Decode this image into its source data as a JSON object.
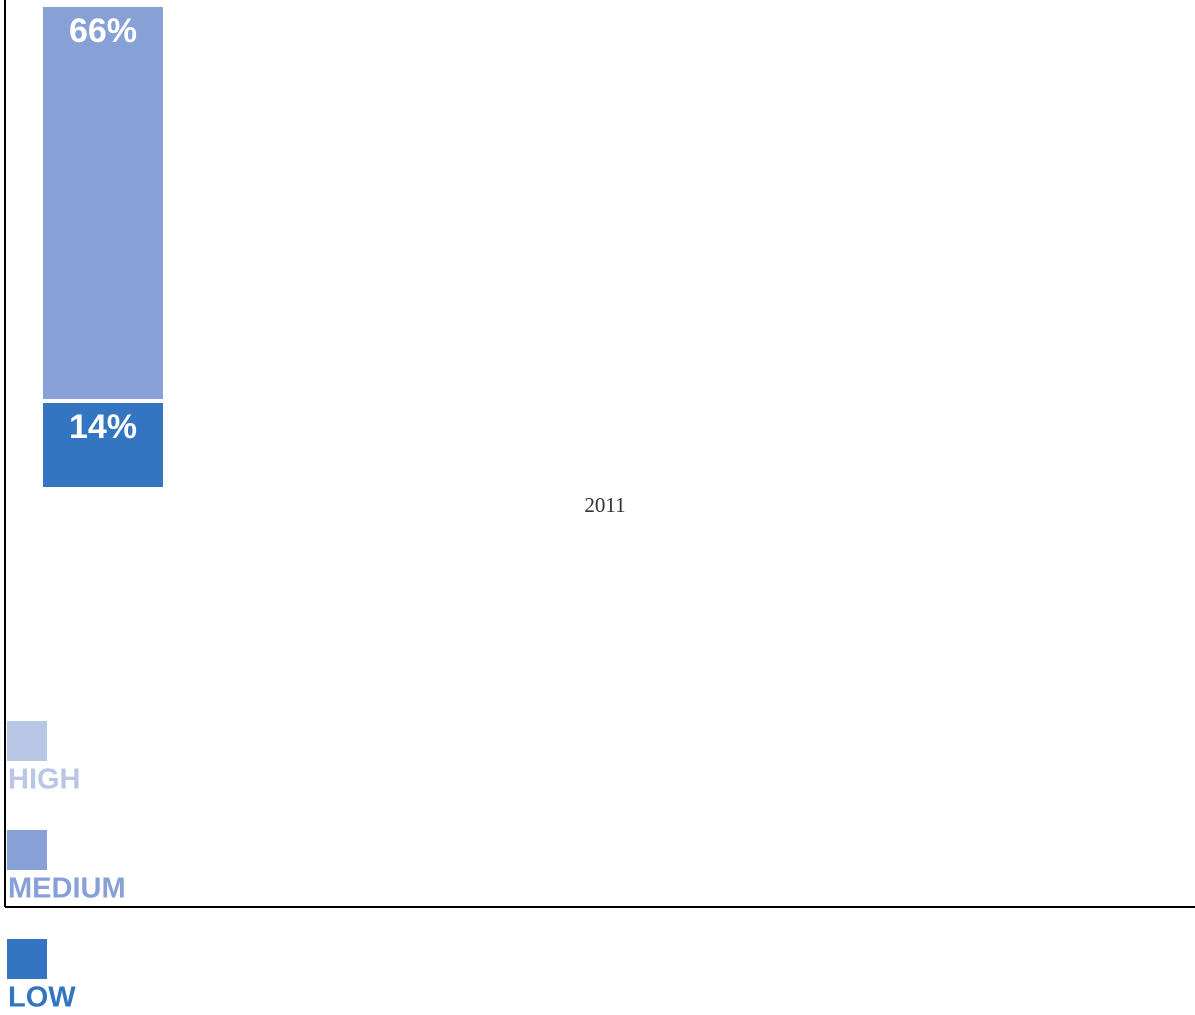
{
  "chart_data": {
    "type": "stacked_bar",
    "categories": [
      "2011"
    ],
    "series": [
      {
        "name": "LOW",
        "color": "#3375c1",
        "values": [
          14
        ],
        "value_labels": [
          "14%"
        ]
      },
      {
        "name": "MEDIUM",
        "color": "#87a1d6",
        "values": [
          66
        ],
        "value_labels": [
          "66%"
        ]
      },
      {
        "name": "HIGH",
        "color": "#b9c7e7",
        "values": [
          null
        ],
        "value_labels": [
          null
        ]
      }
    ]
  }
}
